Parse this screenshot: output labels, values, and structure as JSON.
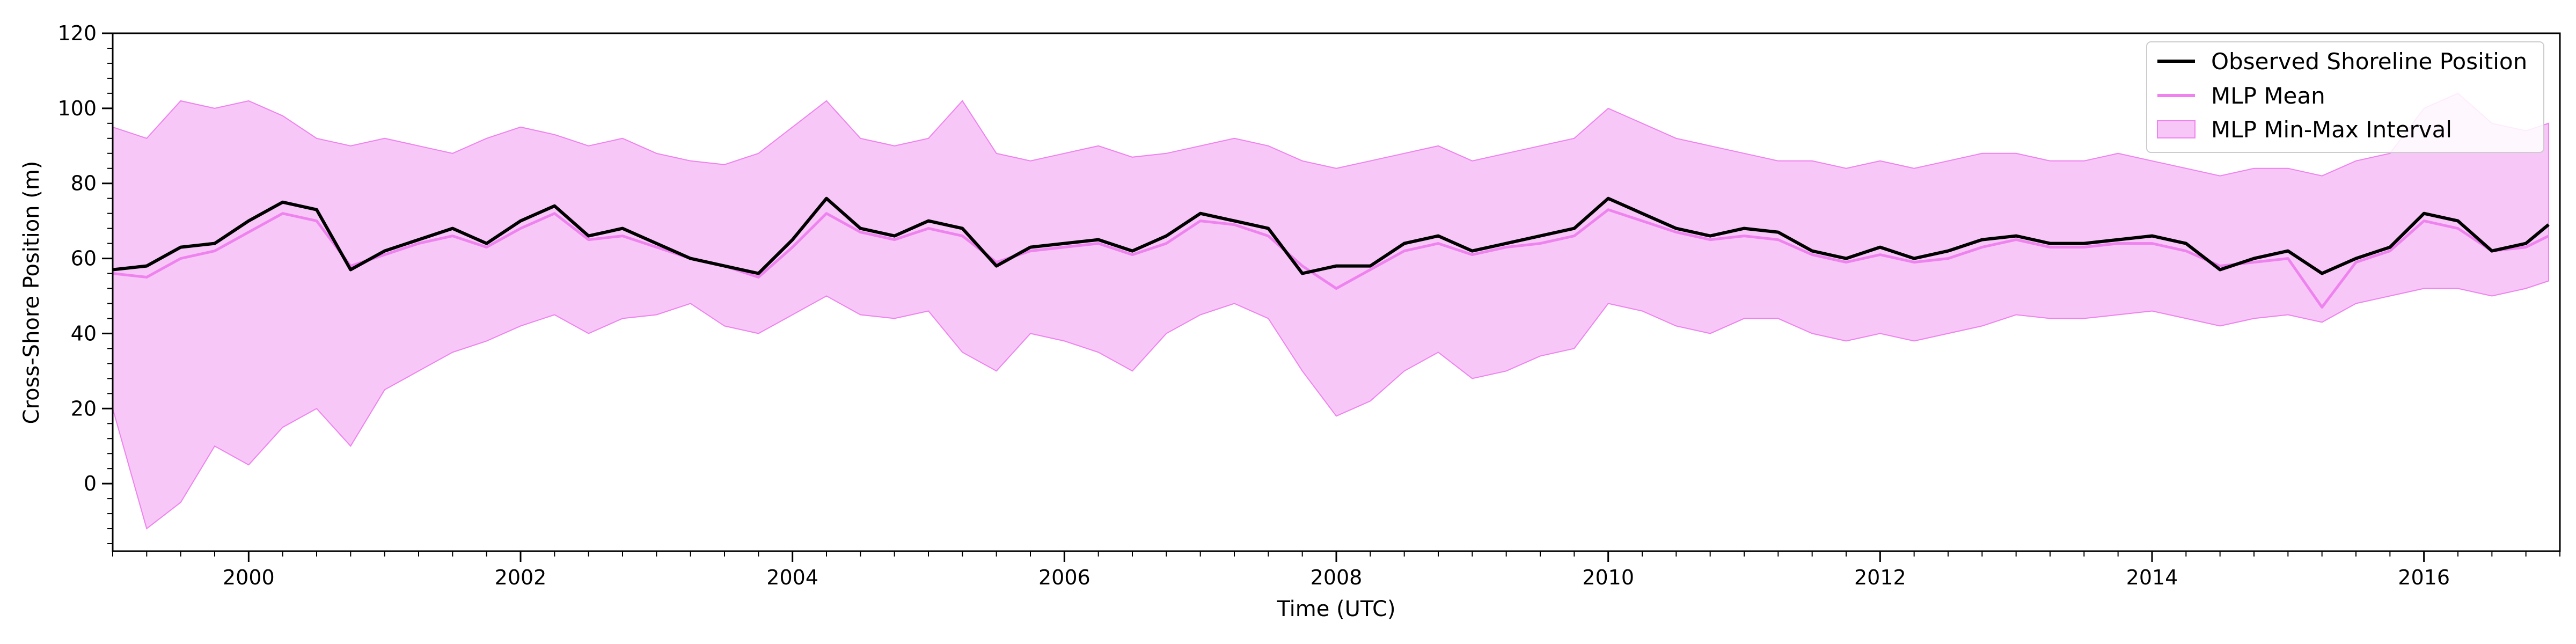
{
  "colors": {
    "observed": "#000000",
    "mean": "#ee82ee",
    "band_fill": "#ee82ee",
    "band_fill_opacity": 0.45,
    "legend_border": "#cccccc"
  },
  "chart_data": {
    "type": "line",
    "title": "",
    "xlabel": "Time (UTC)",
    "ylabel": "Cross-Shore Position (m)",
    "xlim": [
      "1999-01-01",
      "2017-01-01"
    ],
    "ylim": [
      -18,
      120
    ],
    "x_ticks": [
      "2000",
      "2002",
      "2004",
      "2006",
      "2008",
      "2010",
      "2012",
      "2014",
      "2016"
    ],
    "y_ticks": [
      0,
      20,
      40,
      60,
      80,
      100,
      120
    ],
    "legend": {
      "placement": "top-right",
      "entries": [
        "Observed Shoreline Position",
        "MLP Mean",
        "MLP Min-Max Interval"
      ]
    },
    "grid": false,
    "series": [
      {
        "name": "Observed Shoreline Position",
        "kind": "line",
        "x": [
          "1999-01",
          "1999-04",
          "1999-07",
          "1999-10",
          "2000-01",
          "2000-04",
          "2000-07",
          "2000-10",
          "2001-01",
          "2001-04",
          "2001-07",
          "2001-10",
          "2002-01",
          "2002-04",
          "2002-07",
          "2002-10",
          "2003-01",
          "2003-04",
          "2003-07",
          "2003-10",
          "2004-01",
          "2004-04",
          "2004-07",
          "2004-10",
          "2005-01",
          "2005-04",
          "2005-07",
          "2005-10",
          "2006-01",
          "2006-04",
          "2006-07",
          "2006-10",
          "2007-01",
          "2007-04",
          "2007-07",
          "2007-10",
          "2008-01",
          "2008-04",
          "2008-07",
          "2008-10",
          "2009-01",
          "2009-04",
          "2009-07",
          "2009-10",
          "2010-01",
          "2010-04",
          "2010-07",
          "2010-10",
          "2011-01",
          "2011-04",
          "2011-07",
          "2011-10",
          "2012-01",
          "2012-04",
          "2012-07",
          "2012-10",
          "2013-01",
          "2013-04",
          "2013-07",
          "2013-10",
          "2014-01",
          "2014-04",
          "2014-07",
          "2014-10",
          "2015-01",
          "2015-04",
          "2015-07",
          "2015-10",
          "2016-01",
          "2016-04",
          "2016-07",
          "2016-10",
          "2016-12"
        ],
        "values": [
          57,
          58,
          63,
          64,
          70,
          75,
          73,
          57,
          62,
          65,
          68,
          64,
          70,
          74,
          66,
          68,
          64,
          60,
          58,
          56,
          65,
          76,
          68,
          66,
          70,
          68,
          58,
          63,
          64,
          65,
          62,
          66,
          72,
          70,
          68,
          56,
          58,
          58,
          64,
          66,
          62,
          64,
          66,
          68,
          76,
          72,
          68,
          66,
          68,
          67,
          62,
          60,
          63,
          60,
          62,
          65,
          66,
          64,
          64,
          65,
          66,
          64,
          57,
          60,
          62,
          56,
          60,
          63,
          72,
          70,
          62,
          64,
          69
        ]
      },
      {
        "name": "MLP Mean",
        "kind": "line",
        "x": [
          "1999-01",
          "1999-04",
          "1999-07",
          "1999-10",
          "2000-01",
          "2000-04",
          "2000-07",
          "2000-10",
          "2001-01",
          "2001-04",
          "2001-07",
          "2001-10",
          "2002-01",
          "2002-04",
          "2002-07",
          "2002-10",
          "2003-01",
          "2003-04",
          "2003-07",
          "2003-10",
          "2004-01",
          "2004-04",
          "2004-07",
          "2004-10",
          "2005-01",
          "2005-04",
          "2005-07",
          "2005-10",
          "2006-01",
          "2006-04",
          "2006-07",
          "2006-10",
          "2007-01",
          "2007-04",
          "2007-07",
          "2007-10",
          "2008-01",
          "2008-04",
          "2008-07",
          "2008-10",
          "2009-01",
          "2009-04",
          "2009-07",
          "2009-10",
          "2010-01",
          "2010-04",
          "2010-07",
          "2010-10",
          "2011-01",
          "2011-04",
          "2011-07",
          "2011-10",
          "2012-01",
          "2012-04",
          "2012-07",
          "2012-10",
          "2013-01",
          "2013-04",
          "2013-07",
          "2013-10",
          "2014-01",
          "2014-04",
          "2014-07",
          "2014-10",
          "2015-01",
          "2015-04",
          "2015-07",
          "2015-10",
          "2016-01",
          "2016-04",
          "2016-07",
          "2016-10",
          "2016-12"
        ],
        "values": [
          56,
          55,
          60,
          62,
          67,
          72,
          70,
          58,
          61,
          64,
          66,
          63,
          68,
          72,
          65,
          66,
          63,
          60,
          58,
          55,
          63,
          72,
          67,
          65,
          68,
          66,
          59,
          62,
          63,
          64,
          61,
          64,
          70,
          69,
          66,
          58,
          52,
          57,
          62,
          64,
          61,
          63,
          64,
          66,
          73,
          70,
          67,
          65,
          66,
          65,
          61,
          59,
          61,
          59,
          60,
          63,
          65,
          63,
          63,
          64,
          64,
          62,
          58,
          59,
          60,
          47,
          59,
          62,
          70,
          68,
          62,
          63,
          66
        ]
      },
      {
        "name": "MLP Min-Max Interval",
        "kind": "band",
        "x": [
          "1999-01",
          "1999-04",
          "1999-07",
          "1999-10",
          "2000-01",
          "2000-04",
          "2000-07",
          "2000-10",
          "2001-01",
          "2001-04",
          "2001-07",
          "2001-10",
          "2002-01",
          "2002-04",
          "2002-07",
          "2002-10",
          "2003-01",
          "2003-04",
          "2003-07",
          "2003-10",
          "2004-01",
          "2004-04",
          "2004-07",
          "2004-10",
          "2005-01",
          "2005-04",
          "2005-07",
          "2005-10",
          "2006-01",
          "2006-04",
          "2006-07",
          "2006-10",
          "2007-01",
          "2007-04",
          "2007-07",
          "2007-10",
          "2008-01",
          "2008-04",
          "2008-07",
          "2008-10",
          "2009-01",
          "2009-04",
          "2009-07",
          "2009-10",
          "2010-01",
          "2010-04",
          "2010-07",
          "2010-10",
          "2011-01",
          "2011-04",
          "2011-07",
          "2011-10",
          "2012-01",
          "2012-04",
          "2012-07",
          "2012-10",
          "2013-01",
          "2013-04",
          "2013-07",
          "2013-10",
          "2014-01",
          "2014-04",
          "2014-07",
          "2014-10",
          "2015-01",
          "2015-04",
          "2015-07",
          "2015-10",
          "2016-01",
          "2016-04",
          "2016-07",
          "2016-10",
          "2016-12"
        ],
        "lower": [
          20,
          -12,
          -5,
          10,
          5,
          15,
          20,
          10,
          25,
          30,
          35,
          38,
          42,
          45,
          40,
          44,
          45,
          48,
          42,
          40,
          45,
          50,
          45,
          44,
          46,
          35,
          30,
          40,
          38,
          35,
          30,
          40,
          45,
          48,
          44,
          30,
          18,
          22,
          30,
          35,
          28,
          30,
          34,
          36,
          48,
          46,
          42,
          40,
          44,
          44,
          40,
          38,
          40,
          38,
          40,
          42,
          45,
          44,
          44,
          45,
          46,
          44,
          42,
          44,
          45,
          43,
          48,
          50,
          52,
          52,
          50,
          52,
          54
        ],
        "upper": [
          95,
          92,
          102,
          100,
          102,
          98,
          92,
          90,
          92,
          90,
          88,
          92,
          95,
          93,
          90,
          92,
          88,
          86,
          85,
          88,
          95,
          102,
          92,
          90,
          92,
          102,
          88,
          86,
          88,
          90,
          87,
          88,
          90,
          92,
          90,
          86,
          84,
          86,
          88,
          90,
          86,
          88,
          90,
          92,
          100,
          96,
          92,
          90,
          88,
          86,
          86,
          84,
          86,
          84,
          86,
          88,
          88,
          86,
          86,
          88,
          86,
          84,
          82,
          84,
          84,
          82,
          86,
          88,
          100,
          104,
          96,
          94,
          96
        ]
      }
    ]
  }
}
